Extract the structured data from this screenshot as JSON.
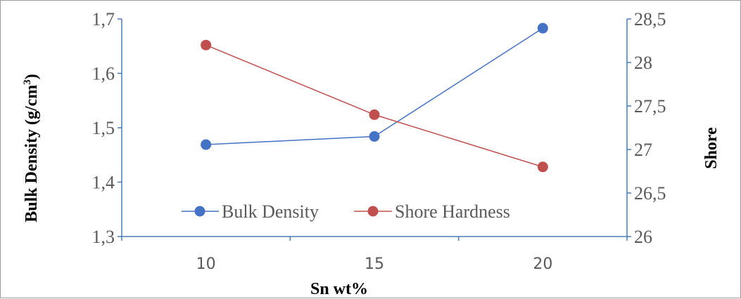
{
  "chart_data": {
    "type": "line",
    "x": [
      10,
      15,
      20
    ],
    "series": [
      {
        "name": "Bulk Density",
        "axis": "left",
        "color": "#4472C4",
        "values": [
          1.469,
          1.484,
          1.683
        ]
      },
      {
        "name": "Shore Hardness",
        "axis": "right",
        "color": "#C0504D",
        "values": [
          28.2,
          27.4,
          26.8
        ]
      }
    ],
    "xlabel": "Sn wt%",
    "ylabel_left": "Bulk Density (g/cm",
    "ylabel_left_sup": "3",
    "ylabel_left_close": ")",
    "ylabel_right": "Shore",
    "x_ticks": [
      "10",
      "15",
      "20"
    ],
    "y_left_ticks": [
      "1,7",
      "1,6",
      "1,5",
      "1,4",
      "1,3"
    ],
    "y_left_range": [
      1.3,
      1.7
    ],
    "y_right_ticks": [
      "28,5",
      "28",
      "27,5",
      "27",
      "26,5",
      "26"
    ],
    "y_right_range": [
      26,
      28.5
    ],
    "grid": false,
    "legend_position": "bottom-inside"
  }
}
